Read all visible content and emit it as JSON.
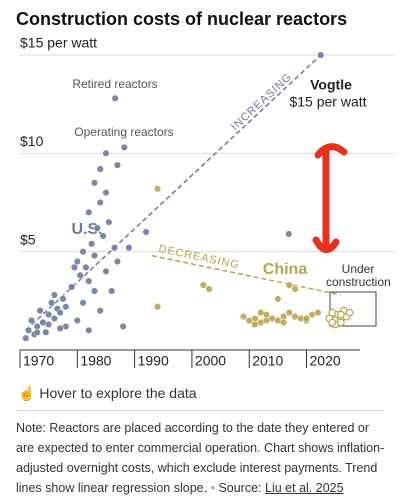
{
  "chart_data": {
    "type": "scatter",
    "title": "Construction costs of nuclear reactors",
    "xlim": [
      1968.6,
      2033
    ],
    "ylim": [
      0,
      15
    ],
    "xticks": [
      1970,
      1980,
      1990,
      2000,
      2010,
      2020
    ],
    "yticks": [
      {
        "value": 5,
        "label": "$5"
      },
      {
        "value": 10,
        "label": "$10"
      },
      {
        "value": 15,
        "label": "$15 per watt"
      }
    ],
    "grid": true,
    "series": [
      {
        "name": "U.S.",
        "color": "#6b7aa1",
        "hollow": false,
        "x": [
          1971.5,
          1972,
          1972.5,
          1973,
          1973.5,
          1974,
          1974.5,
          1975,
          1975.5,
          1976,
          1976.5,
          1977,
          1977.5,
          1978,
          1979,
          1979.5,
          1980,
          1980.5,
          1981,
          1981.5,
          1982,
          1982.5,
          1983,
          1983.5,
          1984,
          1984.5,
          1985,
          1985.5,
          1986,
          1986.5,
          1987,
          1982,
          1983,
          1984,
          1985,
          1986.6,
          1988.2,
          1989,
          1976,
          1978,
          1980,
          1982,
          1984,
          1988,
          1971,
          1973,
          1975,
          1977,
          1981,
          1983,
          1985,
          1987,
          1992,
          2016.9,
          2022.5
        ],
        "values": [
          1.0,
          1.5,
          0.8,
          1.2,
          2.0,
          1.4,
          0.9,
          1.8,
          2.4,
          1.6,
          2.1,
          1.9,
          2.6,
          2.2,
          3.2,
          4.2,
          4.5,
          3.8,
          5.0,
          4.2,
          3.5,
          5.4,
          4.8,
          6.2,
          7.5,
          5.8,
          4.0,
          6.5,
          3.0,
          5.2,
          4.5,
          7.0,
          8.5,
          9.2,
          10.0,
          12.8,
          10.3,
          5.2,
          2.8,
          1.2,
          1.5,
          1.0,
          2.0,
          1.2,
          0.6,
          0.9,
          1.3,
          1.1,
          2.4,
          3.0,
          8.0,
          9.4,
          6.0,
          5.9,
          15
        ]
      },
      {
        "name": "China",
        "color": "#b9a54d",
        "hollow": false,
        "x": [
          1994,
          1994,
          2002,
          2003,
          2009,
          2010,
          2011,
          2012,
          2013,
          2014,
          2015,
          2016,
          2017,
          2017,
          2018,
          2019,
          2020,
          2021,
          2022,
          2015,
          2011,
          2013,
          2016,
          2018,
          2020,
          2012
        ],
        "values": [
          8.2,
          2.2,
          3.3,
          3.1,
          1.7,
          1.5,
          1.6,
          1.4,
          1.5,
          1.6,
          1.5,
          1.7,
          1.9,
          3.3,
          3.1,
          1.6,
          1.5,
          1.8,
          1.9,
          2.6,
          1.3,
          1.8,
          1.4,
          1.7,
          1.6,
          1.9
        ]
      },
      {
        "name": "Under construction",
        "color": "#b9a54d",
        "hollow": true,
        "x": [
          2024,
          2024.5,
          2025,
          2025.5,
          2026,
          2026.5,
          2027,
          2025,
          2026,
          2027.5,
          2024.5,
          2026
        ],
        "values": [
          1.6,
          1.9,
          1.5,
          1.8,
          1.6,
          2.0,
          1.7,
          1.3,
          1.4,
          1.9,
          1.4,
          1.8
        ]
      }
    ],
    "trend_lines": [
      {
        "label": "INCREASING",
        "color": "#6b7aa1",
        "x": [
          1971,
          2022.5
        ],
        "values": [
          1.0,
          15
        ]
      },
      {
        "label": "DECREASING",
        "color": "#b9a54d",
        "x": [
          1993,
          2026
        ],
        "values": [
          4.8,
          2.8
        ]
      }
    ],
    "annotations": {
      "retired": "Retired reactors",
      "operating": "Operating reactors",
      "vogtle": "Vogtle",
      "vogtle_value": "$15 per watt"
    }
  },
  "page": {
    "hover_hint": "Hover to explore the data",
    "note": "Note: Reactors are placed according to the date they entered or are expected to enter commercial operation. Chart shows inflation-adjusted overnight costs, which exclude interest payments. Trend lines show linear regression slope.",
    "source_label": "Source:",
    "source_link": "Liu et al. 2025"
  }
}
